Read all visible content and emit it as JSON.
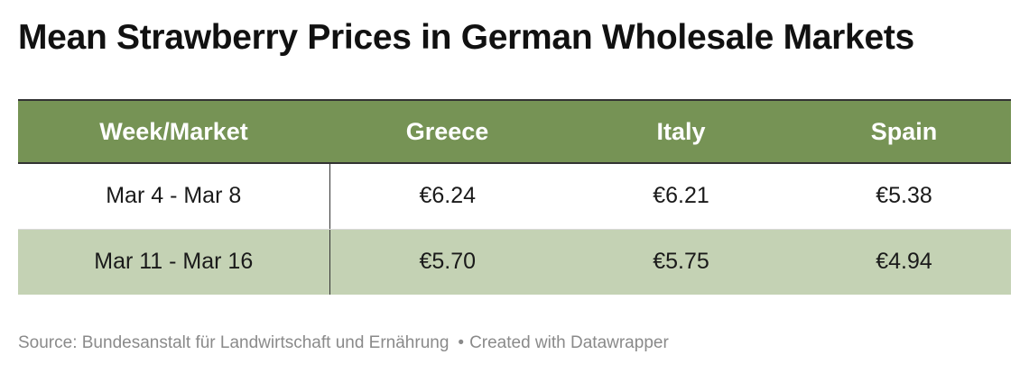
{
  "chart_data": {
    "type": "table",
    "title": "Mean Strawberry Prices in German Wholesale Markets",
    "columns": [
      "Week/Market",
      "Greece",
      "Italy",
      "Spain"
    ],
    "rows": [
      [
        "Mar 4 - Mar 8",
        "€6.24",
        "€6.21",
        "€5.38"
      ],
      [
        "Mar 11 - Mar 16",
        "€5.70",
        "€5.75",
        "€4.94"
      ]
    ],
    "values": [
      {
        "week": "Mar 4 - Mar 8",
        "Greece": 6.24,
        "Italy": 6.21,
        "Spain": 5.38
      },
      {
        "week": "Mar 11 - Mar 16",
        "Greece": 5.7,
        "Italy": 5.75,
        "Spain": 4.94
      }
    ],
    "header_color": "#769355",
    "stripe_color": "#c4d2b4"
  },
  "footer": {
    "source": "Source: Bundesanstalt für Landwirtschaft und Ernährung",
    "separator": "•",
    "credit": "Created with Datawrapper"
  }
}
